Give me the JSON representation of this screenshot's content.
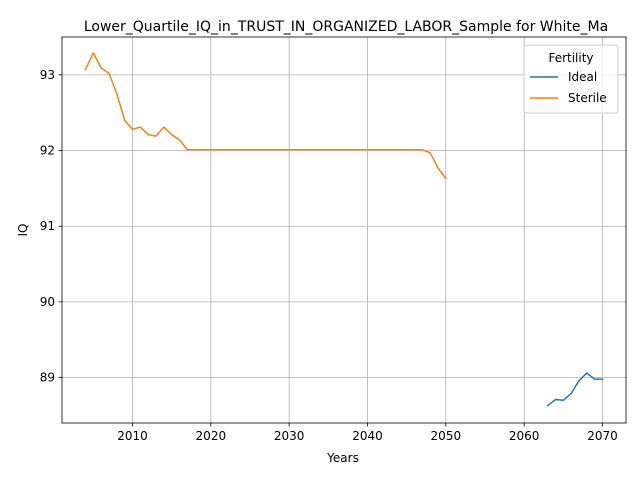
{
  "chart_data": {
    "type": "line",
    "title": "Lower_Quartile_IQ_in_TRUST_IN_ORGANIZED_LABOR_Sample for White_Ma",
    "xlabel": "Years",
    "ylabel": "IQ",
    "xlim": [
      2001,
      2073
    ],
    "ylim": [
      88.4,
      93.5
    ],
    "xticks": [
      2010,
      2020,
      2030,
      2040,
      2050,
      2060,
      2070
    ],
    "yticks": [
      89,
      90,
      91,
      92,
      93
    ],
    "grid": true,
    "legend": {
      "title": "Fertility",
      "placement": "top-right"
    },
    "series": [
      {
        "name": "Ideal",
        "color": "#1f77b4",
        "x": [
          2063,
          2064,
          2065,
          2066,
          2067,
          2068,
          2069,
          2070
        ],
        "y": [
          88.63,
          88.71,
          88.7,
          88.79,
          88.96,
          89.06,
          88.98,
          88.98
        ]
      },
      {
        "name": "Sterile",
        "color": "#ff7f0e",
        "x": [
          2004,
          2005,
          2006,
          2007,
          2008,
          2009,
          2010,
          2011,
          2012,
          2013,
          2014,
          2015,
          2016,
          2017,
          2018,
          2019,
          2020,
          2025,
          2030,
          2035,
          2040,
          2045,
          2046,
          2047,
          2048,
          2049,
          2050
        ],
        "y": [
          93.07,
          93.29,
          93.09,
          93.02,
          92.75,
          92.4,
          92.28,
          92.31,
          92.21,
          92.19,
          92.31,
          92.21,
          92.14,
          92.01,
          92.01,
          92.01,
          92.01,
          92.01,
          92.01,
          92.01,
          92.01,
          92.01,
          92.01,
          92.01,
          91.97,
          91.77,
          91.63
        ]
      }
    ]
  }
}
